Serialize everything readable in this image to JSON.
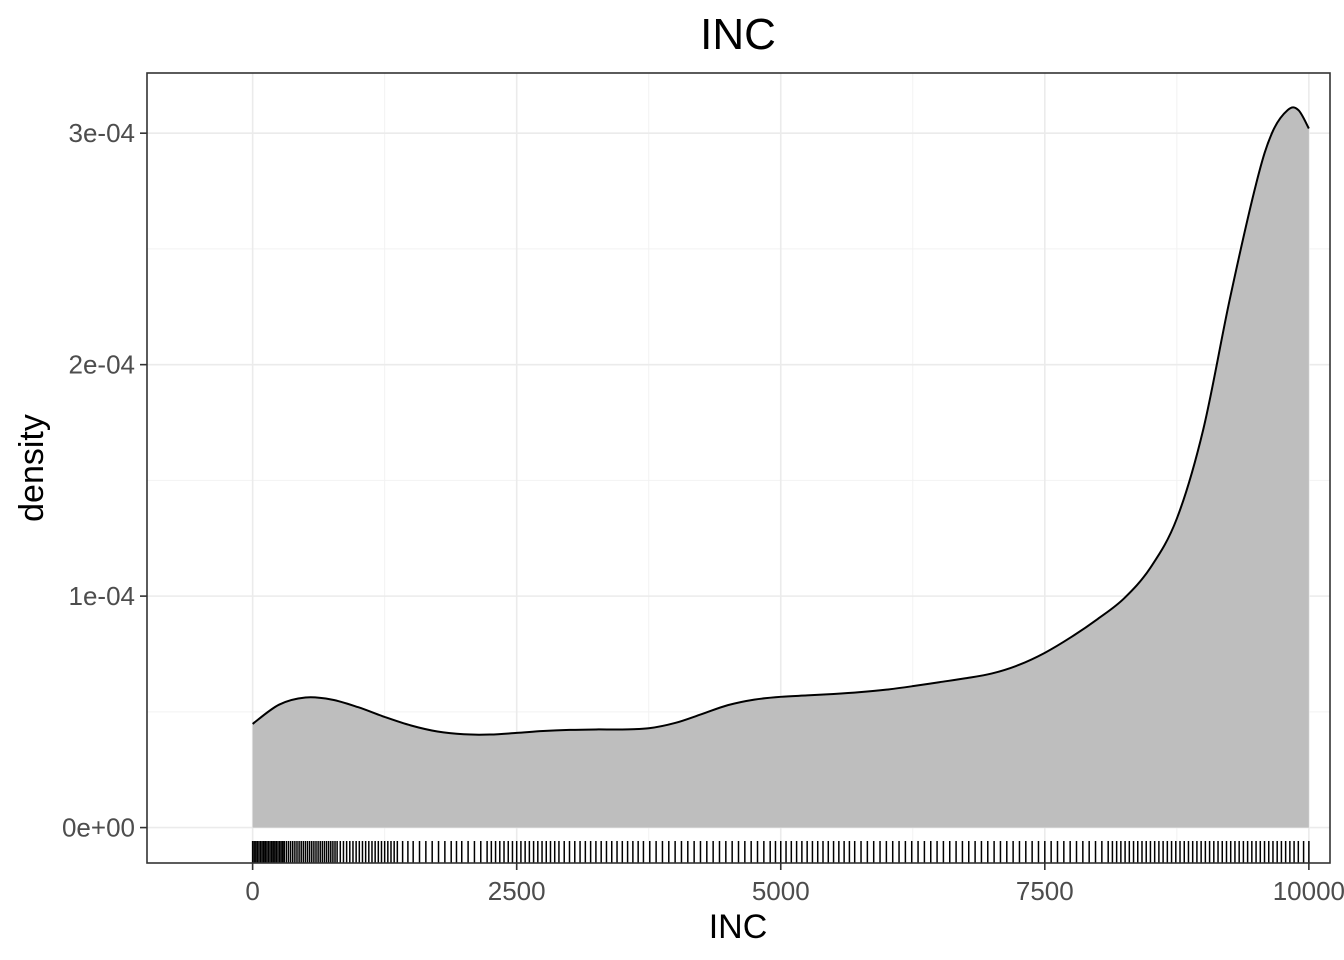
{
  "chart_data": {
    "type": "area",
    "title": "INC",
    "xlabel": "INC",
    "ylabel": "density",
    "xlim": [
      -1000,
      10200
    ],
    "ylim": [
      -1.53e-05,
      0.000326
    ],
    "x_ticks": [
      0,
      2500,
      5000,
      7500,
      10000
    ],
    "x_tick_labels": [
      "0",
      "2500",
      "5000",
      "7500",
      "10000"
    ],
    "y_ticks": [
      0,
      0.0001,
      0.0002,
      0.0003
    ],
    "y_tick_labels": [
      "0e+00",
      "1e-04",
      "2e-04",
      "3e-04"
    ],
    "grid": true,
    "fill_color": "#bebebe",
    "line_color": "#000000",
    "series": [
      {
        "x": [
          0,
          250,
          500,
          750,
          1000,
          1250,
          1500,
          1750,
          2000,
          2250,
          2500,
          2750,
          3000,
          3250,
          3500,
          3750,
          4000,
          4250,
          4500,
          4750,
          5000,
          5250,
          5500,
          5750,
          6000,
          6250,
          6500,
          6750,
          7000,
          7250,
          7500,
          7750,
          8000,
          8250,
          8500,
          8750,
          9000,
          9250,
          9500,
          9650,
          9800,
          9900,
          10000
        ],
        "y": [
          4.48e-05,
          5.31e-05,
          5.62e-05,
          5.53e-05,
          5.2e-05,
          4.78e-05,
          4.41e-05,
          4.15e-05,
          4.03e-05,
          4.02e-05,
          4.09e-05,
          4.17e-05,
          4.22e-05,
          4.24e-05,
          4.24e-05,
          4.29e-05,
          4.52e-05,
          4.9e-05,
          5.29e-05,
          5.53e-05,
          5.65e-05,
          5.71e-05,
          5.77e-05,
          5.85e-05,
          5.96e-05,
          6.11e-05,
          6.28e-05,
          6.45e-05,
          6.66e-05,
          7.02e-05,
          7.55e-05,
          8.23e-05,
          9.01e-05,
          9.9e-05,
          0.0001123,
          0.0001335,
          0.000172,
          0.000228,
          0.000278,
          0.0003,
          0.00031,
          0.00031,
          0.000302
        ]
      }
    ],
    "rug_x": [
      0,
      15,
      30,
      45,
      60,
      75,
      90,
      105,
      120,
      135,
      150,
      165,
      180,
      195,
      210,
      225,
      240,
      255,
      270,
      285,
      300,
      320,
      340,
      360,
      380,
      400,
      420,
      440,
      460,
      480,
      500,
      520,
      540,
      560,
      580,
      600,
      620,
      640,
      660,
      680,
      700,
      720,
      740,
      760,
      780,
      800,
      830,
      860,
      890,
      920,
      950,
      980,
      1010,
      1040,
      1070,
      1100,
      1130,
      1160,
      1190,
      1220,
      1250,
      1280,
      1310,
      1340,
      1370,
      1420,
      1470,
      1520,
      1580,
      1640,
      1700,
      1760,
      1820,
      1880,
      1930,
      1980,
      2040,
      2100,
      2160,
      2220,
      2260,
      2300,
      2340,
      2380,
      2420,
      2460,
      2500,
      2540,
      2580,
      2620,
      2660,
      2700,
      2740,
      2780,
      2820,
      2860,
      2900,
      2950,
      3000,
      3050,
      3100,
      3150,
      3200,
      3250,
      3300,
      3350,
      3400,
      3450,
      3500,
      3550,
      3600,
      3650,
      3700,
      3760,
      3820,
      3880,
      3940,
      4000,
      4060,
      4120,
      4180,
      4240,
      4300,
      4360,
      4420,
      4480,
      4540,
      4600,
      4660,
      4720,
      4780,
      4840,
      4900,
      4950,
      5000,
      5050,
      5100,
      5150,
      5200,
      5250,
      5300,
      5350,
      5400,
      5450,
      5500,
      5550,
      5600,
      5650,
      5700,
      5760,
      5820,
      5880,
      5940,
      6000,
      6060,
      6120,
      6180,
      6240,
      6300,
      6360,
      6420,
      6480,
      6540,
      6600,
      6660,
      6720,
      6780,
      6840,
      6900,
      6960,
      7020,
      7080,
      7140,
      7200,
      7260,
      7320,
      7380,
      7440,
      7500,
      7560,
      7620,
      7680,
      7740,
      7800,
      7860,
      7920,
      7980,
      8040,
      8100,
      8140,
      8180,
      8220,
      8260,
      8300,
      8340,
      8380,
      8420,
      8460,
      8500,
      8540,
      8580,
      8620,
      8660,
      8700,
      8740,
      8780,
      8820,
      8860,
      8900,
      8940,
      8980,
      9020,
      9060,
      9100,
      9140,
      9180,
      9220,
      9260,
      9300,
      9340,
      9380,
      9420,
      9460,
      9500,
      9540,
      9580,
      9620,
      9660,
      9700,
      9740,
      9780,
      9820,
      9860,
      9900,
      9950,
      10000
    ]
  }
}
